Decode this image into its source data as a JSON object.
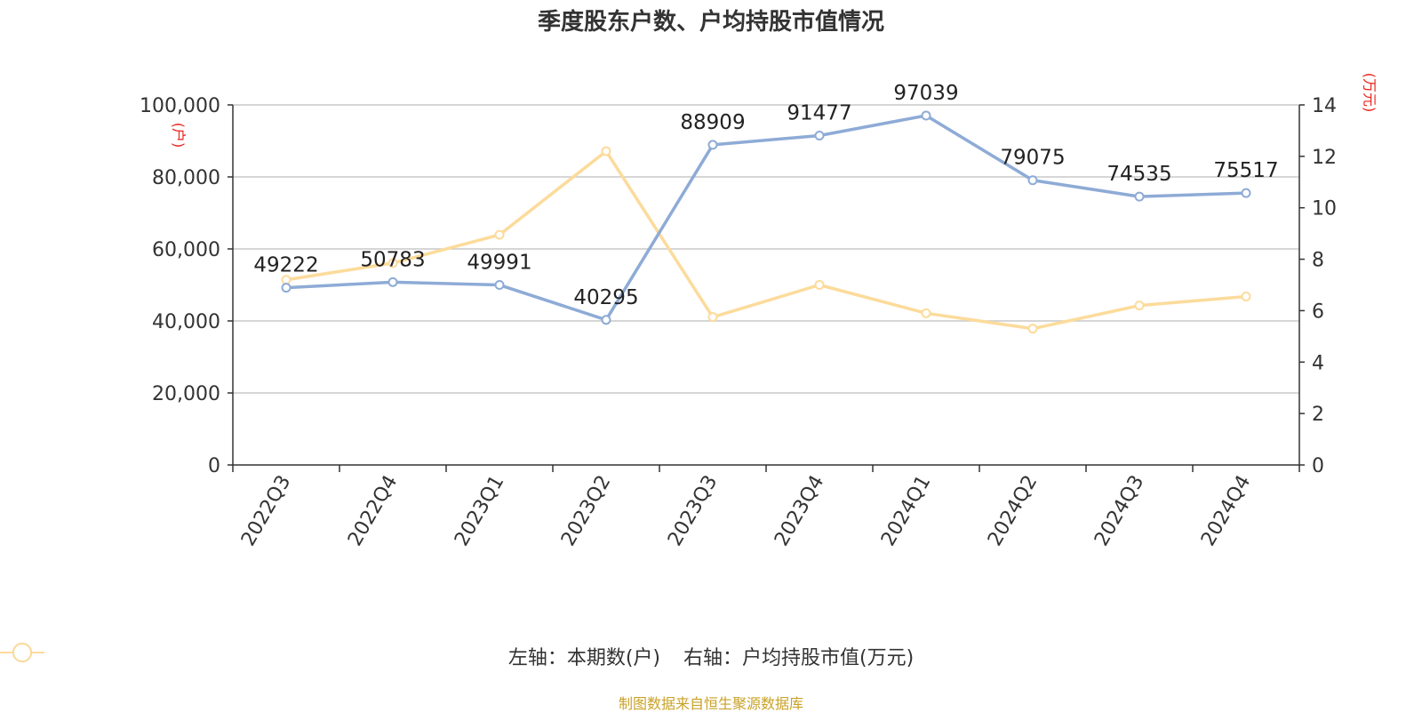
{
  "chart_data": {
    "type": "line",
    "title": "季度股东户数、户均持股市值情况",
    "categories": [
      "2022Q3",
      "2022Q4",
      "2023Q1",
      "2023Q2",
      "2023Q3",
      "2023Q4",
      "2024Q1",
      "2024Q2",
      "2024Q3",
      "2024Q4"
    ],
    "left_axis": {
      "unit": "(户)",
      "ylim": [
        0,
        100000
      ],
      "ticks": [
        "0",
        "20,000",
        "40,000",
        "60,000",
        "80,000",
        "100,000"
      ]
    },
    "right_axis": {
      "unit": "(万元)",
      "ylim": [
        0,
        14
      ],
      "ticks": [
        "0",
        "2",
        "4",
        "6",
        "8",
        "10",
        "12",
        "14"
      ]
    },
    "series": [
      {
        "name": "左轴：本期数(户)",
        "axis": "left",
        "color": "#8eabd6",
        "values": [
          49222,
          50783,
          49991,
          40295,
          88909,
          91477,
          97039,
          79075,
          74535,
          75517
        ],
        "labels": [
          "49222",
          "50783",
          "49991",
          "40295",
          "88909",
          "91477",
          "97039",
          "79075",
          "74535",
          "75517"
        ]
      },
      {
        "name": "右轴：户均持股市值(万元)",
        "axis": "right",
        "color": "#fcdb9b",
        "values": [
          7.2,
          7.85,
          8.95,
          12.2,
          5.75,
          7.0,
          5.9,
          5.3,
          6.2,
          6.55
        ]
      }
    ],
    "grid": true,
    "legend_position": "bottom"
  },
  "source": {
    "text": "制图数据来自恒生聚源数据库",
    "color": "#c9a227"
  },
  "colors": {
    "unit_label": "#e8231a",
    "axis": "#333333",
    "grid": "#c8c8c8"
  }
}
